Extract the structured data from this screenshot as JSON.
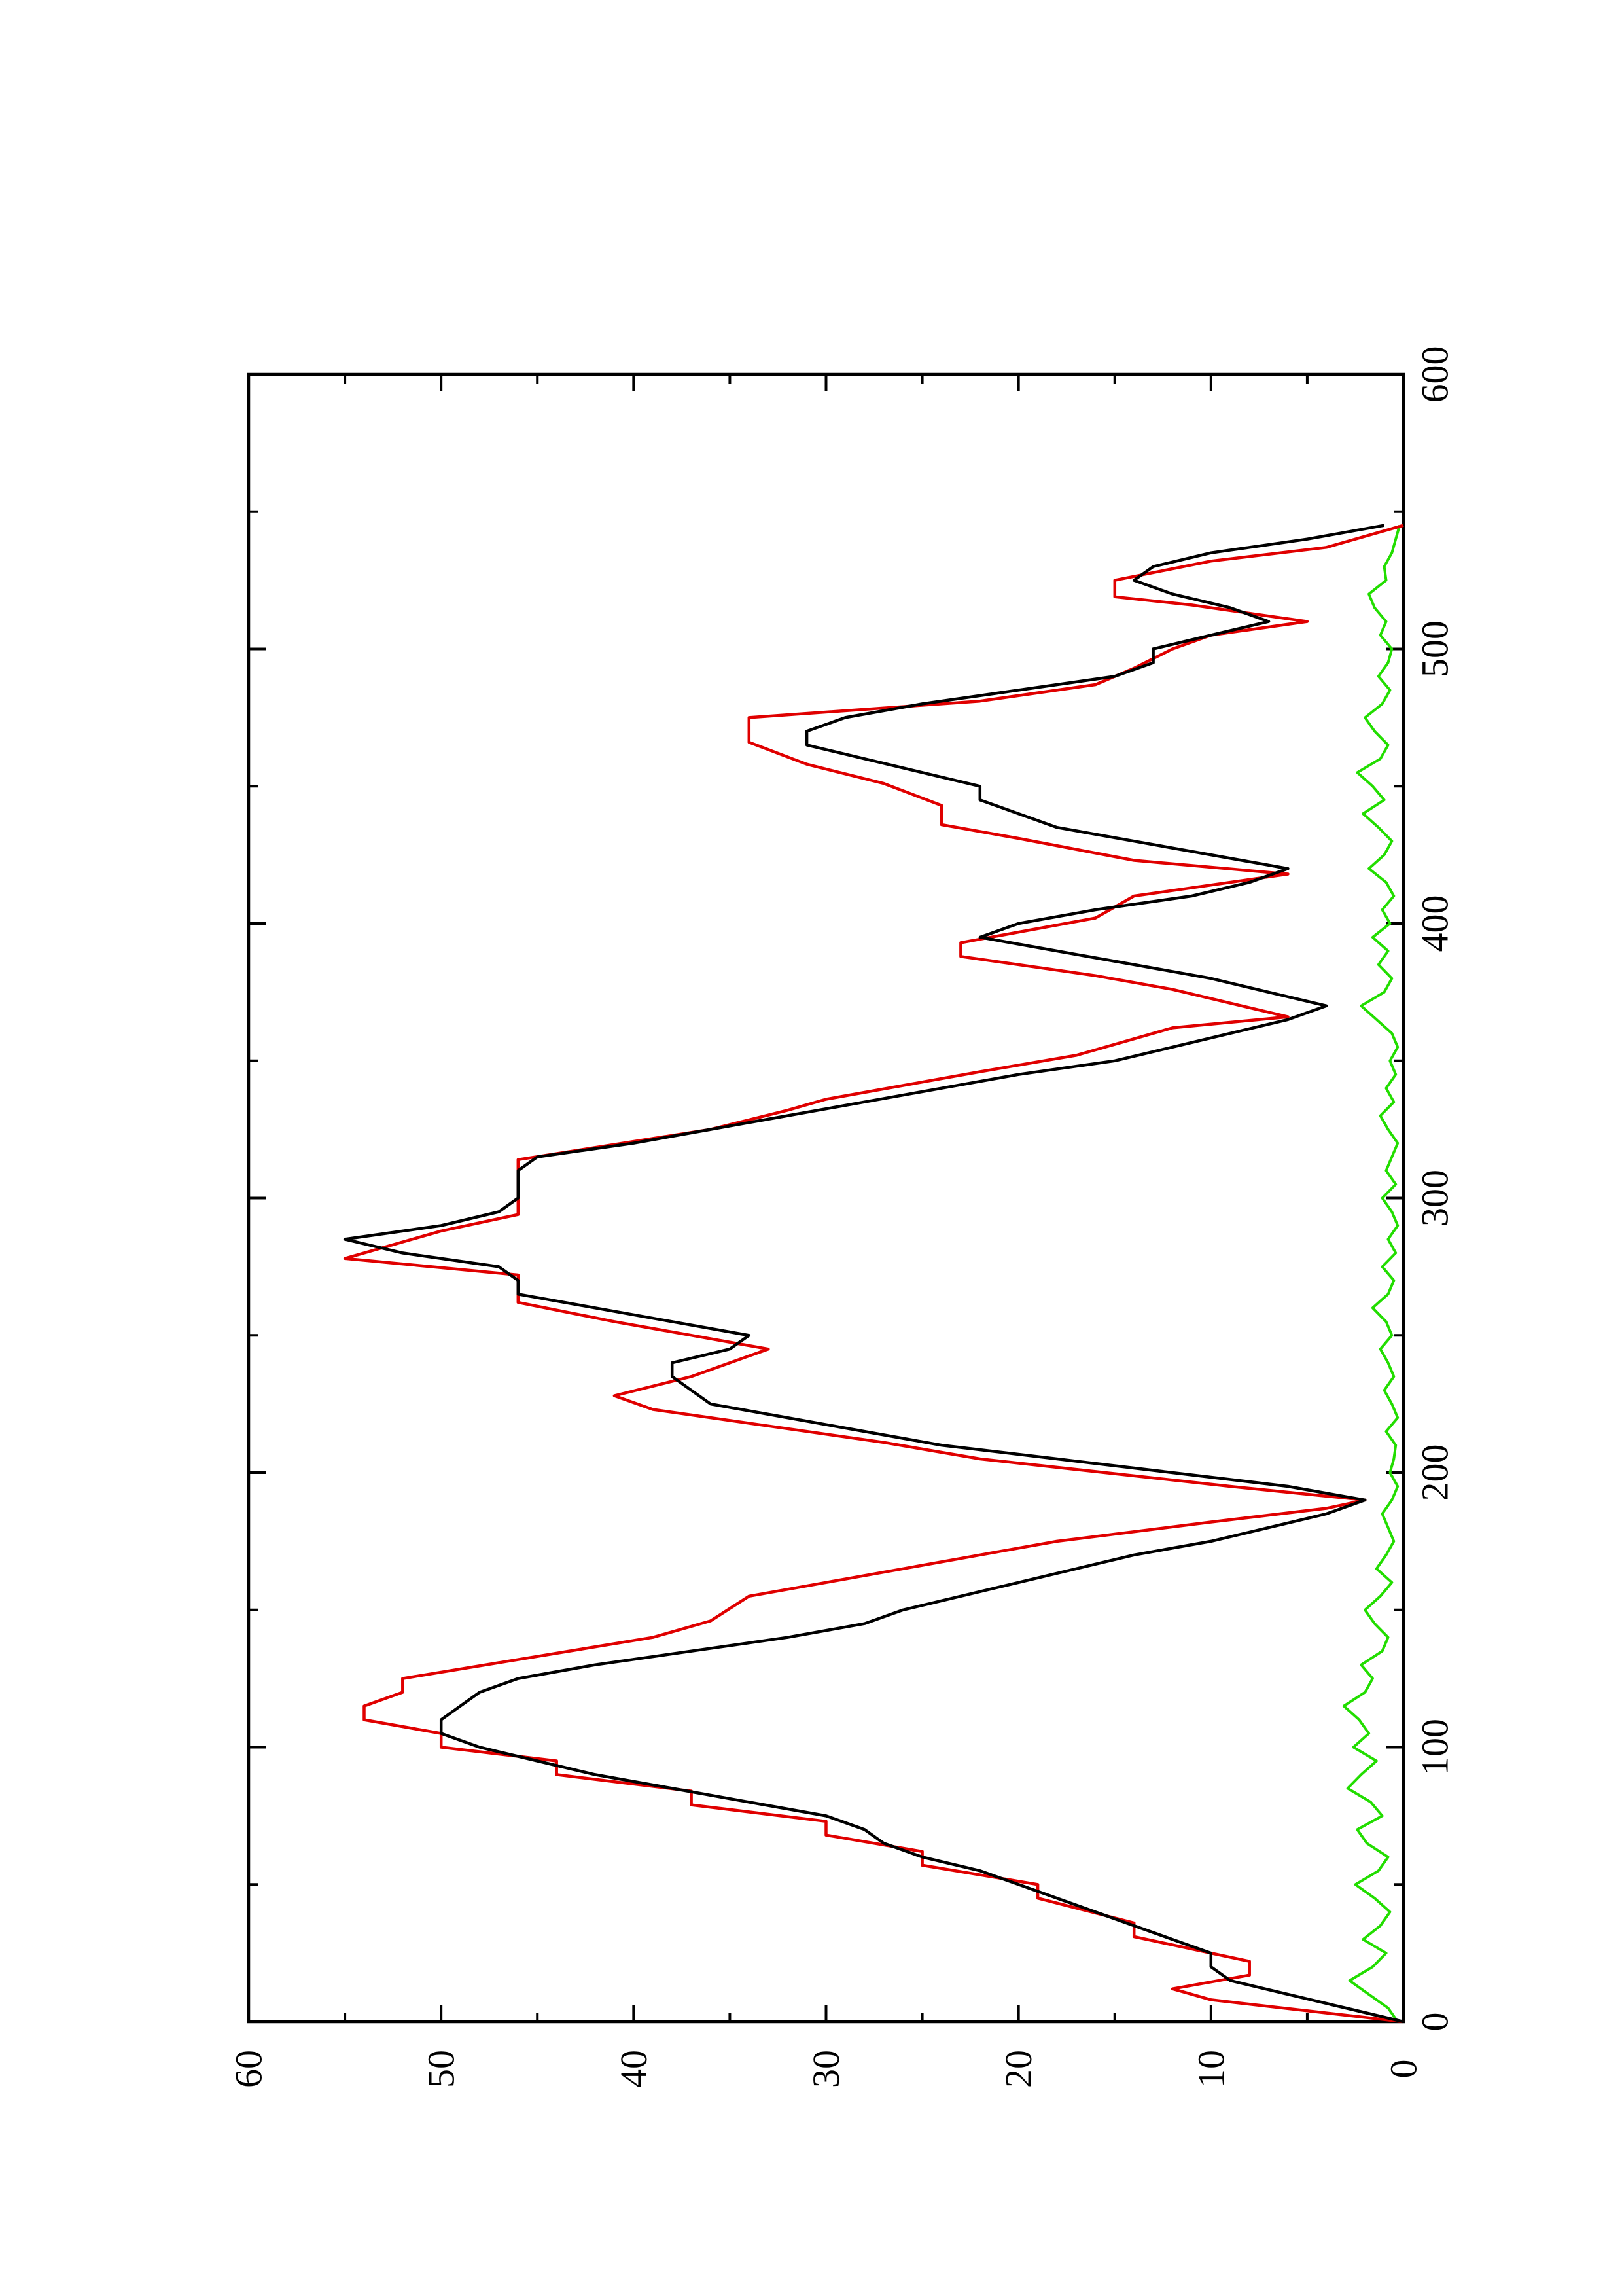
{
  "chart_data": {
    "type": "line",
    "orientation": "rotated-90-counterclockwise",
    "title": "",
    "xlabel": "",
    "ylabel": "",
    "xlim": [
      0,
      600
    ],
    "ylim": [
      0,
      60
    ],
    "x_ticks": [
      0,
      100,
      200,
      300,
      400,
      500,
      600
    ],
    "x_minor_ticks": [
      50,
      150,
      250,
      350,
      450,
      550
    ],
    "y_ticks": [
      0,
      10,
      20,
      30,
      40,
      50,
      60
    ],
    "y_minor_ticks": [
      5,
      15,
      25,
      35,
      45,
      55
    ],
    "x_tick_labels": [
      "0",
      "100",
      "200",
      "300",
      "400",
      "500",
      "600"
    ],
    "y_tick_labels": [
      "0",
      "10",
      "20",
      "30",
      "40",
      "50",
      "60"
    ],
    "grid": false,
    "legend": "none",
    "series": [
      {
        "color": "#e00000",
        "style": "stepped",
        "x": [
          0,
          8,
          12,
          17,
          22,
          31,
          36,
          45,
          50,
          57,
          62,
          68,
          73,
          79,
          84,
          90,
          95,
          100,
          105,
          110,
          115,
          120,
          125,
          140,
          146,
          155,
          160,
          165,
          170,
          175,
          182,
          187,
          190,
          195,
          205,
          211,
          217,
          223,
          228,
          235,
          245,
          255,
          262,
          272,
          278,
          288,
          294,
          304,
          310,
          314,
          325,
          332,
          336,
          346,
          352,
          362,
          366,
          376,
          381,
          388,
          393,
          402,
          410,
          418,
          423,
          431,
          436,
          443,
          451,
          458,
          466,
          475,
          481,
          487,
          493,
          500,
          505,
          510,
          516,
          519,
          525,
          532,
          537,
          545
        ],
        "y": [
          0,
          10,
          12,
          8,
          8,
          14,
          14,
          19,
          19,
          25,
          25,
          30,
          30,
          37,
          37,
          44,
          44,
          50,
          50,
          54,
          54,
          52,
          52,
          39,
          36,
          34,
          30,
          26,
          22,
          18,
          10,
          4,
          2,
          9,
          22,
          27,
          33,
          39,
          41,
          37,
          33,
          41,
          46,
          46,
          55,
          50,
          46,
          46,
          46,
          46,
          36,
          32,
          30,
          22,
          17,
          12,
          6,
          12,
          16,
          23,
          23,
          16,
          14,
          6,
          14,
          20,
          24,
          24,
          27,
          31,
          34,
          34,
          22,
          16,
          14,
          12,
          10,
          5,
          11,
          15,
          15,
          10,
          4,
          0
        ]
      },
      {
        "color": "#000000",
        "style": "solid",
        "x": [
          0,
          5,
          10,
          15,
          20,
          25,
          30,
          35,
          40,
          45,
          50,
          55,
          60,
          65,
          70,
          75,
          80,
          85,
          90,
          95,
          100,
          105,
          110,
          115,
          120,
          125,
          130,
          135,
          140,
          145,
          150,
          155,
          160,
          165,
          170,
          175,
          180,
          185,
          190,
          195,
          200,
          205,
          210,
          215,
          220,
          225,
          230,
          235,
          240,
          245,
          250,
          255,
          260,
          265,
          270,
          275,
          280,
          285,
          290,
          295,
          300,
          305,
          310,
          315,
          320,
          325,
          330,
          335,
          340,
          345,
          350,
          355,
          360,
          365,
          370,
          375,
          380,
          385,
          390,
          395,
          400,
          405,
          410,
          415,
          420,
          425,
          430,
          435,
          440,
          445,
          450,
          455,
          460,
          465,
          470,
          475,
          480,
          485,
          490,
          495,
          500,
          505,
          510,
          515,
          520,
          525,
          530,
          535,
          540,
          545
        ],
        "y": [
          0,
          3,
          6,
          9,
          10,
          10,
          12,
          14,
          16,
          18,
          20,
          22,
          25,
          27,
          28,
          30,
          34,
          38,
          42,
          45,
          48,
          50,
          50,
          49,
          48,
          46,
          42,
          37,
          32,
          28,
          26,
          23,
          20,
          17,
          14,
          10,
          7,
          4,
          2,
          6,
          12,
          18,
          24,
          28,
          32,
          36,
          37,
          38,
          38,
          35,
          34,
          38,
          42,
          46,
          46,
          47,
          52,
          55,
          50,
          47,
          46,
          46,
          46,
          45,
          40,
          36,
          32,
          28,
          24,
          20,
          15,
          12,
          9,
          6,
          4,
          7,
          10,
          14,
          18,
          22,
          20,
          16,
          11,
          8,
          6,
          10,
          14,
          18,
          20,
          22,
          22,
          25,
          28,
          31,
          31,
          29,
          25,
          20,
          15,
          13,
          13,
          10,
          7,
          9,
          12,
          14,
          13,
          10,
          5,
          1
        ]
      },
      {
        "color": "#22dd00",
        "style": "noisy",
        "x": [
          0,
          5,
          10,
          15,
          20,
          25,
          30,
          35,
          40,
          45,
          50,
          55,
          60,
          65,
          70,
          75,
          80,
          85,
          90,
          95,
          100,
          105,
          110,
          115,
          120,
          125,
          130,
          135,
          140,
          145,
          150,
          155,
          160,
          165,
          170,
          175,
          180,
          185,
          190,
          195,
          200,
          205,
          210,
          215,
          220,
          225,
          230,
          235,
          240,
          245,
          250,
          255,
          260,
          265,
          270,
          275,
          280,
          285,
          290,
          295,
          300,
          305,
          310,
          315,
          320,
          325,
          330,
          335,
          340,
          345,
          350,
          355,
          360,
          365,
          370,
          375,
          380,
          385,
          390,
          395,
          400,
          405,
          410,
          415,
          420,
          425,
          430,
          435,
          440,
          445,
          450,
          455,
          460,
          465,
          470,
          475,
          480,
          485,
          490,
          495,
          500,
          505,
          510,
          515,
          520,
          525,
          530,
          535,
          540,
          545
        ],
        "y": [
          0.3,
          0.8,
          1.8,
          2.8,
          1.6,
          0.9,
          2.1,
          1.2,
          0.7,
          1.5,
          2.5,
          1.3,
          0.8,
          1.9,
          2.4,
          1.1,
          1.7,
          2.9,
          2.2,
          1.4,
          2.6,
          1.8,
          2.3,
          3.1,
          2.0,
          1.6,
          2.2,
          1.1,
          0.8,
          1.5,
          2.0,
          1.2,
          0.6,
          1.4,
          0.9,
          0.5,
          0.8,
          1.1,
          0.6,
          0.3,
          0.7,
          0.5,
          0.4,
          0.9,
          0.3,
          0.6,
          1.0,
          0.5,
          0.8,
          1.2,
          0.6,
          0.9,
          1.6,
          0.8,
          0.5,
          1.1,
          0.4,
          0.8,
          0.3,
          0.6,
          1.1,
          0.4,
          0.9,
          0.6,
          0.3,
          0.8,
          1.2,
          0.5,
          0.9,
          0.4,
          0.7,
          0.3,
          0.6,
          1.4,
          2.2,
          1.0,
          0.6,
          1.3,
          0.8,
          1.6,
          0.7,
          1.1,
          0.5,
          0.9,
          1.8,
          1.0,
          0.6,
          1.3,
          2.1,
          1.0,
          1.6,
          2.4,
          1.2,
          0.8,
          1.5,
          2.0,
          1.1,
          0.7,
          1.3,
          0.8,
          0.6,
          1.2,
          0.9,
          1.5,
          1.8,
          0.9,
          1.0,
          0.6,
          0.4,
          0.2
        ]
      }
    ]
  }
}
